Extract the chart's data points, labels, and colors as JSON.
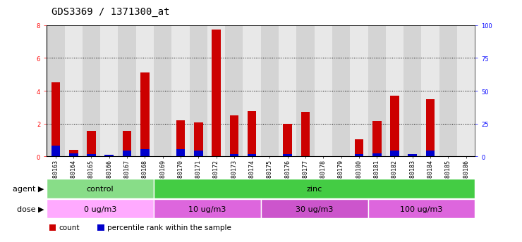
{
  "title": "GDS3369 / 1371300_at",
  "samples": [
    "GSM280163",
    "GSM280164",
    "GSM280165",
    "GSM280166",
    "GSM280167",
    "GSM280168",
    "GSM280169",
    "GSM280170",
    "GSM280171",
    "GSM280172",
    "GSM280173",
    "GSM280174",
    "GSM280175",
    "GSM280176",
    "GSM280177",
    "GSM280178",
    "GSM280179",
    "GSM280180",
    "GSM280181",
    "GSM280182",
    "GSM280183",
    "GSM280184",
    "GSM280185",
    "GSM280186"
  ],
  "count_values": [
    4.5,
    0.4,
    1.55,
    0.08,
    1.55,
    5.1,
    0.0,
    2.2,
    2.05,
    7.75,
    2.5,
    2.75,
    0.0,
    2.0,
    2.7,
    0.0,
    0.0,
    1.05,
    2.15,
    3.7,
    0.15,
    3.5,
    0.0,
    0.0
  ],
  "pct_values": [
    0.65,
    0.18,
    0.12,
    0.08,
    0.35,
    0.45,
    0.0,
    0.45,
    0.35,
    0.0,
    0.12,
    0.12,
    0.0,
    0.12,
    0.0,
    0.0,
    0.0,
    0.12,
    0.18,
    0.35,
    0.12,
    0.35,
    0.0,
    0.0
  ],
  "count_color": "#cc0000",
  "pct_color": "#0000cc",
  "ylim_left": [
    0,
    8
  ],
  "ylim_right": [
    0,
    100
  ],
  "yticks_left": [
    0,
    2,
    4,
    6,
    8
  ],
  "yticks_right": [
    0,
    25,
    50,
    75,
    100
  ],
  "grid_yticks": [
    2,
    4,
    6
  ],
  "agent_groups": [
    {
      "label": "control",
      "start": 0,
      "end": 6,
      "color": "#88dd88"
    },
    {
      "label": "zinc",
      "start": 6,
      "end": 24,
      "color": "#44cc44"
    }
  ],
  "dose_groups": [
    {
      "label": "0 ug/m3",
      "start": 0,
      "end": 6,
      "color": "#ffaaff"
    },
    {
      "label": "10 ug/m3",
      "start": 6,
      "end": 12,
      "color": "#dd66dd"
    },
    {
      "label": "30 ug/m3",
      "start": 12,
      "end": 18,
      "color": "#cc55cc"
    },
    {
      "label": "100 ug/m3",
      "start": 18,
      "end": 24,
      "color": "#dd66dd"
    }
  ],
  "bar_width": 0.5,
  "bg_color": "#ffffff",
  "col_bg_even": "#d4d4d4",
  "col_bg_odd": "#e8e8e8",
  "title_fontsize": 10,
  "tick_fontsize": 6,
  "annot_fontsize": 8,
  "legend_fontsize": 7.5
}
